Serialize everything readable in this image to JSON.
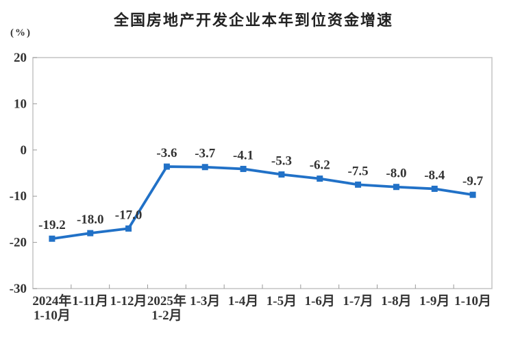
{
  "header": {
    "title": "全国房地产开发企业本年到位资金增速",
    "unit_label": "(%)"
  },
  "chart_data": {
    "type": "line",
    "title": "全国房地产开发企业本年到位资金增速",
    "unit": "(%)",
    "categories": [
      [
        "2024年",
        "1-10月"
      ],
      [
        "1-11月"
      ],
      [
        "1-12月"
      ],
      [
        "2025年",
        "1-2月"
      ],
      [
        "1-3月"
      ],
      [
        "1-4月"
      ],
      [
        "1-5月"
      ],
      [
        "1-6月"
      ],
      [
        "1-7月"
      ],
      [
        "1-8月"
      ],
      [
        "1-9月"
      ],
      [
        "1-10月"
      ]
    ],
    "values": [
      -19.2,
      -18.0,
      -17.0,
      -3.6,
      -3.7,
      -4.1,
      -5.3,
      -6.2,
      -7.5,
      -8.0,
      -8.4,
      -9.7
    ],
    "value_labels": [
      "-19.2",
      "-18.0",
      "-17.0",
      "-3.6",
      "-3.7",
      "-4.1",
      "-5.3",
      "-6.2",
      "-7.5",
      "-8.0",
      "-8.4",
      "-9.7"
    ],
    "ylim": [
      -30,
      20
    ],
    "yticks": [
      "20",
      "10",
      "0",
      "-10",
      "-20",
      "-30"
    ],
    "grid": false,
    "legend": "none",
    "line_color": "#2171C7",
    "marker": "square"
  },
  "style": {
    "plot_border_color": "#c3c3c3",
    "tick_color": "#999999",
    "label_color": "#333333",
    "title_color": "#222222",
    "background": "#ffffff"
  }
}
